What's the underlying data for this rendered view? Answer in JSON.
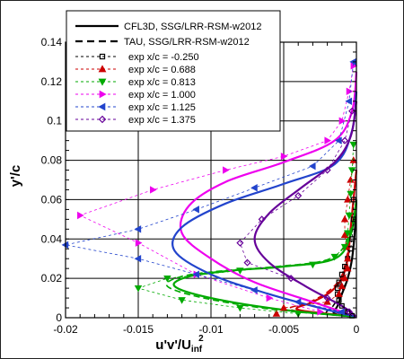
{
  "chart_data": {
    "type": "line",
    "xlabel": "u'v'/U",
    "xlabel_sub": "inf",
    "xlabel_sup": "2",
    "ylabel": "y'/c",
    "xlim": [
      -0.02,
      0
    ],
    "ylim": [
      0,
      0.14
    ],
    "x_ticks": [
      -0.02,
      -0.015,
      -0.01,
      -0.005,
      0
    ],
    "x_tick_labels": [
      "-0.02",
      "-0.015",
      "-0.01",
      "-0.005",
      "0"
    ],
    "y_ticks": [
      0,
      0.02,
      0.04,
      0.06,
      0.08,
      0.1,
      0.12,
      0.14
    ],
    "y_tick_labels": [
      "0",
      "0.02",
      "0.04",
      "0.06",
      "0.08",
      "0.1",
      "0.12",
      "0.14"
    ],
    "grid": true,
    "legend_position": "top",
    "series": [
      {
        "name": "CFL3D, SSG/LRR-RSM-w2012",
        "kind": "solid",
        "color": "#000000",
        "x": [],
        "y": []
      },
      {
        "name": "TAU, SSG/LRR-RSM-w2012",
        "kind": "dashed",
        "color": "#000000",
        "x": [],
        "y": []
      },
      {
        "name": "exp x/c = -0.250",
        "kind": "exp",
        "color": "#000000",
        "marker": "square",
        "x": [
          -0.0003,
          -0.0006,
          -0.001,
          -0.0012,
          -0.0013,
          -0.0013,
          -0.0012,
          -0.001,
          -0.0008,
          -0.0006,
          -0.0004,
          -0.0003,
          -0.0002,
          -0.0002
        ],
        "y": [
          0.001,
          0.003,
          0.006,
          0.009,
          0.012,
          0.015,
          0.018,
          0.022,
          0.026,
          0.03,
          0.035,
          0.04,
          0.05,
          0.06
        ]
      },
      {
        "name": "exp x/c = 0.688",
        "kind": "exp",
        "color": "#cc0000",
        "marker": "triangle-up",
        "x": [
          -0.0055,
          -0.005,
          -0.002,
          -0.0012,
          -0.001,
          -0.0008,
          -0.0006,
          -0.0006,
          -0.0007,
          -0.0008,
          -0.0008,
          -0.0006,
          -0.0004,
          -0.0002
        ],
        "y": [
          0.002,
          0.005,
          0.008,
          0.012,
          0.016,
          0.02,
          0.025,
          0.03,
          0.036,
          0.042,
          0.05,
          0.06,
          0.07,
          0.08
        ]
      },
      {
        "name": "exp x/c = 0.813",
        "kind": "exp",
        "color": "#00aa00",
        "marker": "triangle-down",
        "x": [
          -0.004,
          -0.008,
          -0.012,
          -0.015,
          -0.013,
          -0.008,
          -0.003,
          -0.0015,
          -0.0008,
          -0.0006,
          -0.0005,
          -0.0004,
          -0.0003,
          -0.0002
        ],
        "y": [
          0.002,
          0.005,
          0.009,
          0.015,
          0.02,
          0.024,
          0.027,
          0.031,
          0.036,
          0.043,
          0.052,
          0.063,
          0.075,
          0.088
        ]
      },
      {
        "name": "exp x/c = 1.000",
        "kind": "exp",
        "color": "#ee00ee",
        "marker": "triangle-right",
        "x": [
          -0.0025,
          -0.006,
          -0.011,
          -0.015,
          -0.019,
          -0.014,
          -0.009,
          -0.005,
          -0.002,
          -0.001,
          -0.0005,
          -0.0002
        ],
        "y": [
          0.003,
          0.01,
          0.022,
          0.038,
          0.052,
          0.065,
          0.075,
          0.082,
          0.09,
          0.1,
          0.115,
          0.128
        ]
      },
      {
        "name": "exp x/c = 1.125",
        "kind": "exp",
        "color": "#2244cc",
        "marker": "triangle-left",
        "x": [
          -0.001,
          -0.004,
          -0.007,
          -0.011,
          -0.015,
          -0.02,
          -0.015,
          -0.011,
          -0.007,
          -0.003,
          -0.0012,
          -0.0005,
          -0.0002
        ],
        "y": [
          0.003,
          0.008,
          0.014,
          0.022,
          0.03,
          0.037,
          0.045,
          0.055,
          0.066,
          0.077,
          0.09,
          0.11,
          0.13
        ]
      },
      {
        "name": "exp x/c = 1.375",
        "kind": "exp",
        "color": "#660099",
        "marker": "diamond",
        "x": [
          -0.0005,
          -0.002,
          -0.0045,
          -0.0075,
          -0.008,
          -0.0065,
          -0.004,
          -0.002,
          -0.0008,
          -0.0003
        ],
        "y": [
          0.003,
          0.01,
          0.02,
          0.028,
          0.038,
          0.05,
          0.062,
          0.075,
          0.09,
          0.105
        ]
      }
    ],
    "model_curves": [
      {
        "color": "#000000",
        "dashed": false,
        "x": [
          0,
          -0.0015,
          -0.0013,
          -0.001,
          -0.0006,
          -0.0003,
          -0.0001,
          0
        ],
        "y": [
          0.0005,
          0.002,
          0.006,
          0.012,
          0.02,
          0.03,
          0.045,
          0.06
        ]
      },
      {
        "color": "#000000",
        "dashed": true,
        "x": [
          0,
          -0.002,
          -0.0016,
          -0.0011,
          -0.0006,
          -0.0003,
          -0.0001,
          0
        ],
        "y": [
          0.0005,
          0.002,
          0.006,
          0.012,
          0.02,
          0.03,
          0.045,
          0.06
        ]
      },
      {
        "color": "#cc0000",
        "dashed": false,
        "x": [
          0,
          -0.004,
          -0.003,
          -0.0018,
          -0.001,
          -0.0006,
          -0.0004,
          -0.0002,
          0
        ],
        "y": [
          0.0005,
          0.004,
          0.008,
          0.013,
          0.02,
          0.03,
          0.045,
          0.06,
          0.075
        ]
      },
      {
        "color": "#cc0000",
        "dashed": true,
        "x": [
          0,
          -0.0045,
          -0.0032,
          -0.002,
          -0.0011,
          -0.0007,
          -0.0004,
          -0.0002,
          0
        ],
        "y": [
          0.0005,
          0.004,
          0.008,
          0.013,
          0.02,
          0.03,
          0.045,
          0.06,
          0.075
        ]
      },
      {
        "color": "#00aa00",
        "dashed": false,
        "x": [
          0,
          -0.005,
          -0.01,
          -0.0125,
          -0.0115,
          -0.0085,
          -0.005,
          -0.0015,
          -0.0004,
          0
        ],
        "y": [
          0.0005,
          0.004,
          0.01,
          0.016,
          0.021,
          0.024,
          0.026,
          0.03,
          0.042,
          0.06
        ]
      },
      {
        "color": "#00aa00",
        "dashed": true,
        "x": [
          0,
          -0.0055,
          -0.0105,
          -0.013,
          -0.012,
          -0.009,
          -0.0055,
          -0.0018,
          -0.0005,
          0
        ],
        "y": [
          0.0005,
          0.004,
          0.01,
          0.016,
          0.021,
          0.024,
          0.026,
          0.03,
          0.042,
          0.06
        ]
      },
      {
        "color": "#ee00ee",
        "dashed": false,
        "x": [
          0,
          -0.003,
          -0.007,
          -0.01,
          -0.012,
          -0.0115,
          -0.009,
          -0.005,
          -0.0015,
          -0.0003,
          0
        ],
        "y": [
          0.0005,
          0.008,
          0.018,
          0.03,
          0.043,
          0.057,
          0.069,
          0.079,
          0.09,
          0.105,
          0.125
        ]
      },
      {
        "color": "#2244cc",
        "dashed": false,
        "x": [
          0,
          -0.002,
          -0.006,
          -0.01,
          -0.0125,
          -0.012,
          -0.009,
          -0.005,
          -0.0015,
          -0.0003,
          0
        ],
        "y": [
          0.0005,
          0.004,
          0.012,
          0.022,
          0.034,
          0.046,
          0.058,
          0.068,
          0.078,
          0.095,
          0.115
        ]
      },
      {
        "color": "#660099",
        "dashed": false,
        "x": [
          0,
          -0.001,
          -0.0035,
          -0.006,
          -0.007,
          -0.006,
          -0.0038,
          -0.0015,
          -0.0004,
          0
        ],
        "y": [
          0.0005,
          0.006,
          0.016,
          0.028,
          0.04,
          0.053,
          0.066,
          0.079,
          0.092,
          0.11
        ]
      }
    ]
  }
}
